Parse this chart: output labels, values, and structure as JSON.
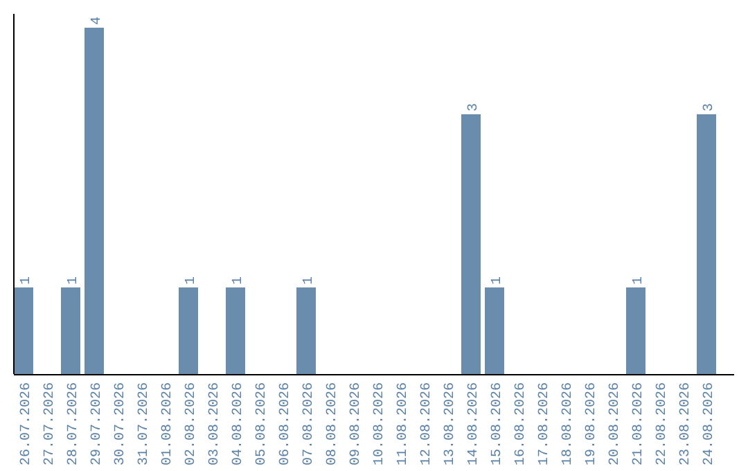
{
  "chart_data": {
    "type": "bar",
    "color": "#6a8cad",
    "categories": [
      "26.07.2026",
      "27.07.2026",
      "28.07.2026",
      "29.07.2026",
      "30.07.2026",
      "31.07.2026",
      "01.08.2026",
      "02.08.2026",
      "03.08.2026",
      "04.08.2026",
      "05.08.2026",
      "06.08.2026",
      "07.08.2026",
      "08.08.2026",
      "09.08.2026",
      "10.08.2026",
      "11.08.2026",
      "12.08.2026",
      "13.08.2026",
      "14.08.2026",
      "15.08.2026",
      "16.08.2026",
      "17.08.2026",
      "18.08.2026",
      "19.08.2026",
      "20.08.2026",
      "21.08.2026",
      "22.08.2026",
      "23.08.2026",
      "24.08.2026"
    ],
    "values": [
      1,
      0,
      1,
      4,
      0,
      0,
      0,
      1,
      0,
      1,
      0,
      0,
      1,
      0,
      0,
      0,
      0,
      0,
      0,
      3,
      1,
      0,
      0,
      0,
      0,
      0,
      1,
      0,
      0,
      3
    ],
    "value_labels": [
      "1",
      null,
      "1",
      "4",
      null,
      null,
      null,
      "1",
      null,
      "1",
      null,
      null,
      "1",
      null,
      null,
      null,
      null,
      null,
      null,
      "3",
      "1",
      null,
      null,
      null,
      null,
      null,
      "1",
      null,
      null,
      "3"
    ],
    "tick_labels": "x"
  }
}
